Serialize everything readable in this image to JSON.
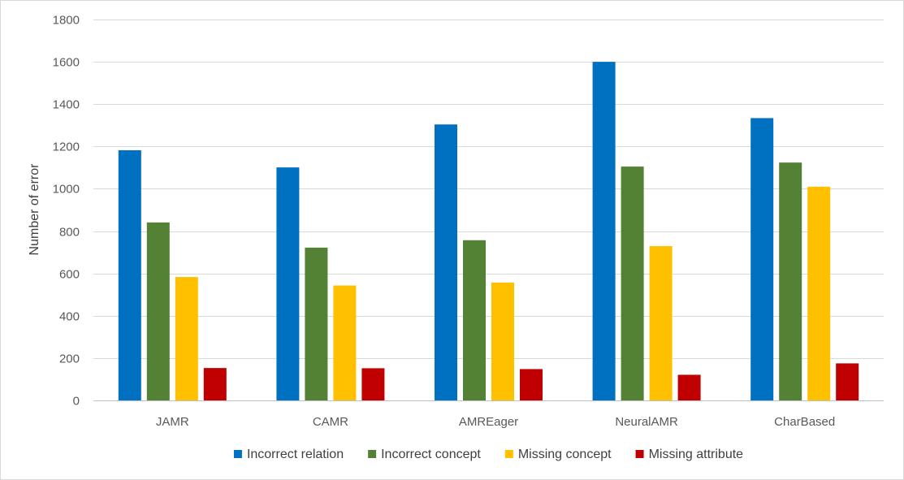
{
  "chart_data": {
    "type": "bar",
    "title": "",
    "xlabel": "",
    "ylabel": "Number of error",
    "categories": [
      "JAMR",
      "CAMR",
      "AMREager",
      "NeuralAMR",
      "CharBased"
    ],
    "series": [
      {
        "name": "Incorrect relation",
        "color": "#0070c0",
        "values": [
          1182,
          1101,
          1304,
          1600,
          1334
        ]
      },
      {
        "name": "Incorrect concept",
        "color": "#548235",
        "values": [
          841,
          722,
          757,
          1105,
          1124
        ]
      },
      {
        "name": "Missing concept",
        "color": "#ffc000",
        "values": [
          583,
          543,
          557,
          729,
          1010
        ]
      },
      {
        "name": "Missing attribute",
        "color": "#c00000",
        "values": [
          153,
          152,
          148,
          121,
          175
        ]
      }
    ],
    "ylim": [
      0,
      1800
    ],
    "yticks": [
      0,
      200,
      400,
      600,
      800,
      1000,
      1200,
      1400,
      1600,
      1800
    ],
    "grid": true,
    "legend": "bottom"
  }
}
